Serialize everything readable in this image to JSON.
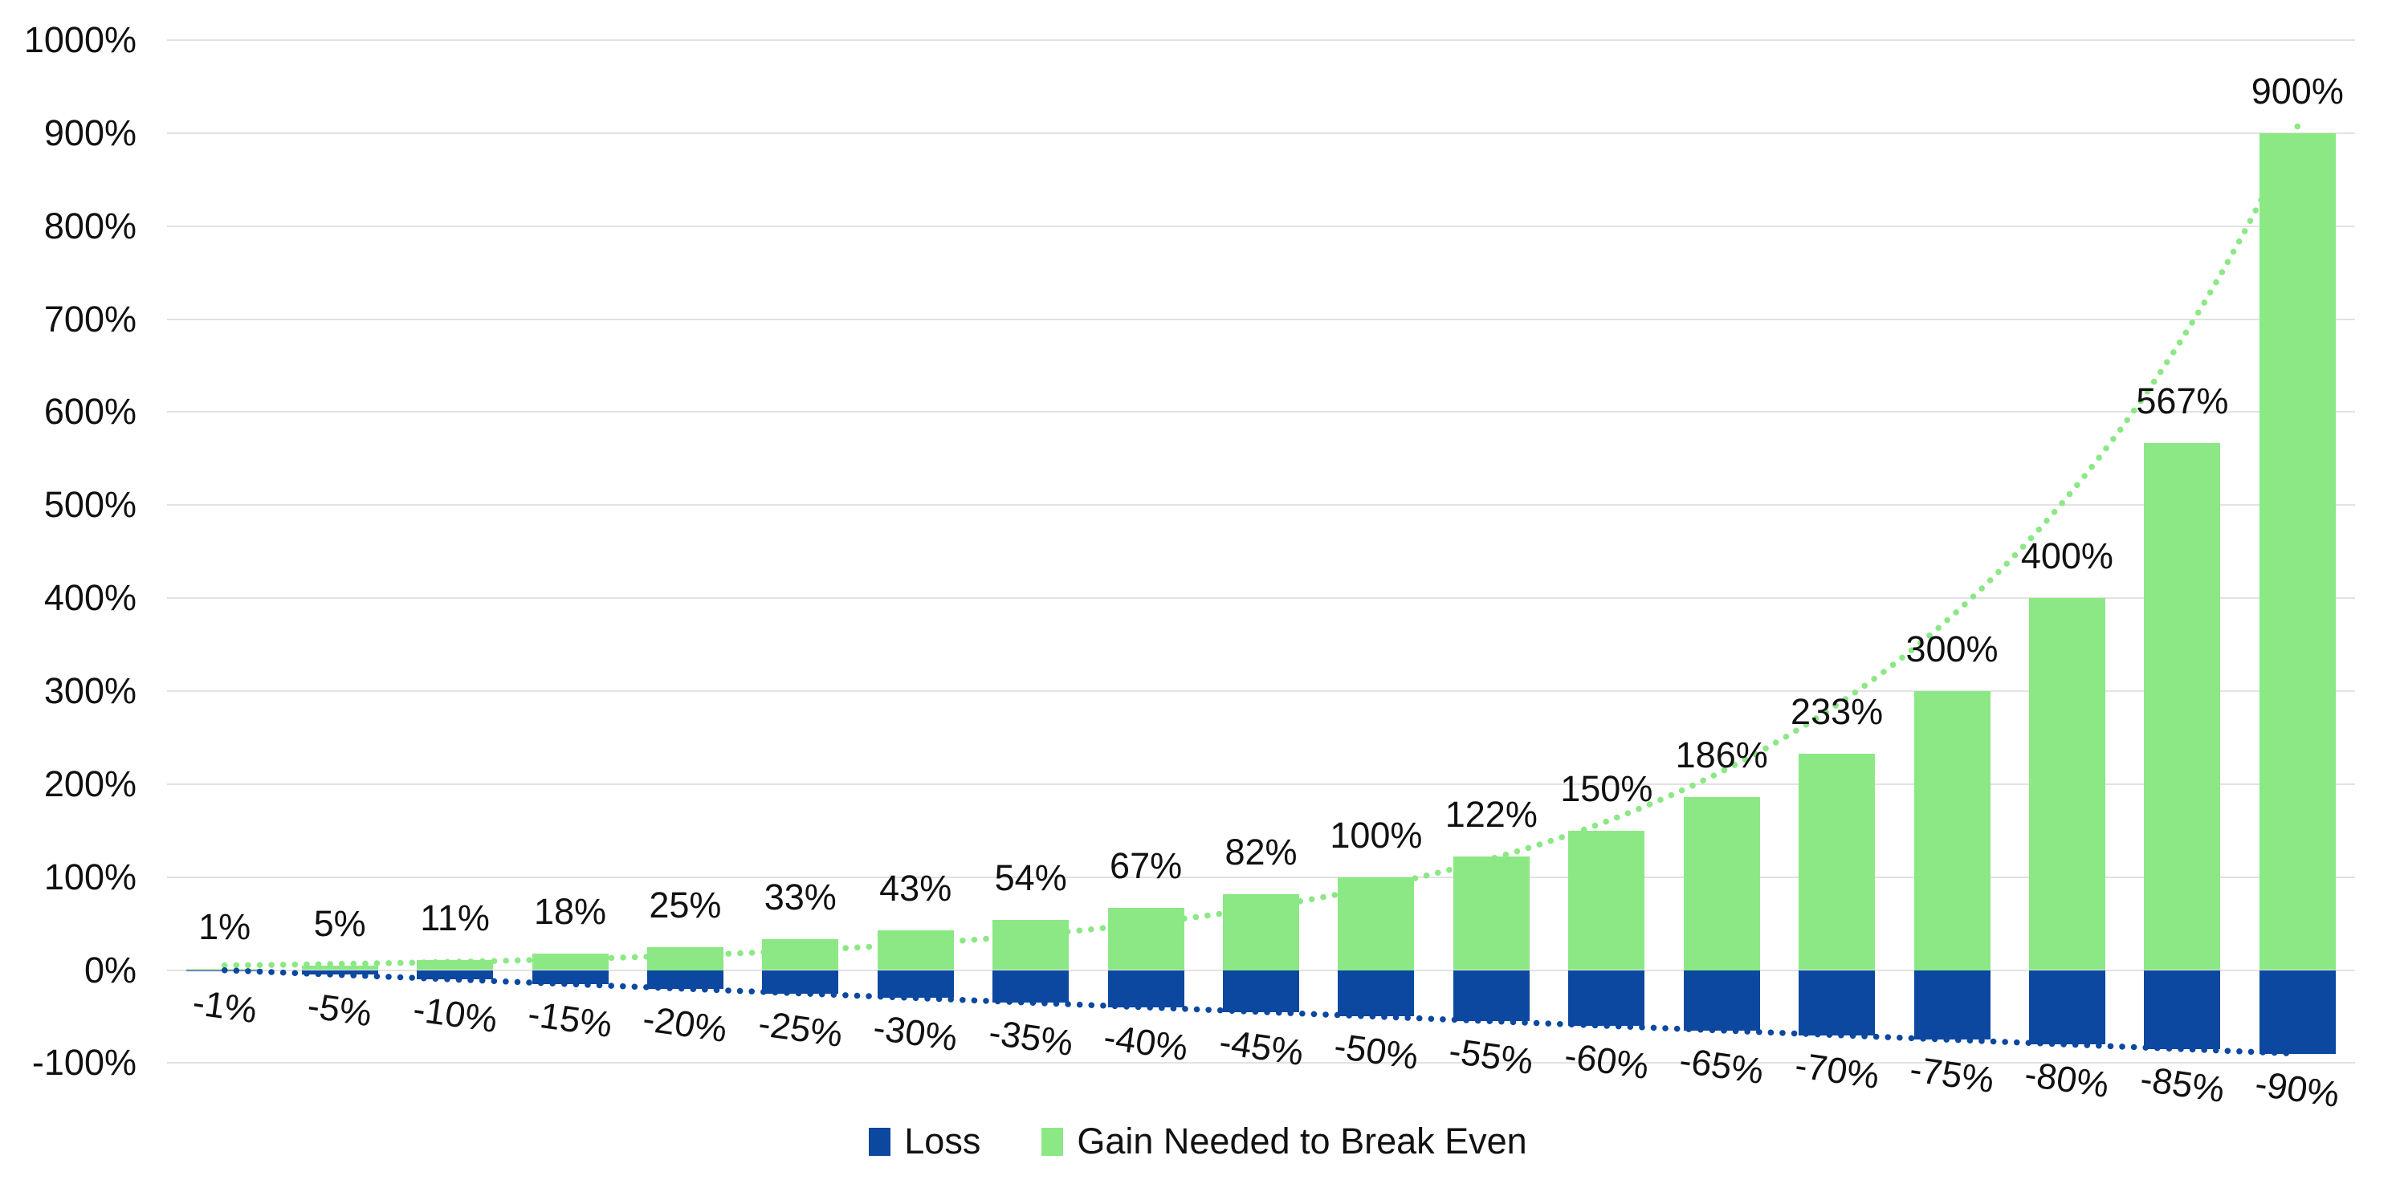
{
  "page": {
    "background": "#FFFFFF"
  },
  "legend": {
    "position": "bottom-center",
    "items": [
      {
        "label": "Loss",
        "color": "#0C47A0"
      },
      {
        "label": "Gain Needed to Break Even",
        "color": "#8CE885"
      }
    ]
  },
  "chart_data": {
    "type": "bar",
    "variant": "stacked-column-with-dotted-trendlines",
    "title": "",
    "xlabel": "",
    "ylabel": "",
    "categories": [
      "-1%",
      "-5%",
      "-10%",
      "-15%",
      "-20%",
      "-25%",
      "-30%",
      "-35%",
      "-40%",
      "-45%",
      "-50%",
      "-55%",
      "-60%",
      "-65%",
      "-70%",
      "-75%",
      "-80%",
      "-85%",
      "-90%"
    ],
    "series": [
      {
        "name": "Loss",
        "color": "#0C47A0",
        "values": [
          -1,
          -5,
          -10,
          -15,
          -20,
          -25,
          -30,
          -35,
          -40,
          -45,
          -50,
          -55,
          -60,
          -65,
          -70,
          -75,
          -80,
          -85,
          -90
        ],
        "trendline": {
          "type": "linear",
          "style": "dotted",
          "color": "#0C47A0"
        }
      },
      {
        "name": "Gain Needed to Break Even",
        "color": "#8CE885",
        "values": [
          1,
          5,
          11,
          18,
          25,
          33,
          43,
          54,
          67,
          82,
          100,
          122,
          150,
          186,
          233,
          300,
          400,
          567,
          900
        ],
        "data_labels": [
          "1%",
          "5%",
          "11%",
          "18%",
          "25%",
          "33%",
          "43%",
          "54%",
          "67%",
          "82%",
          "100%",
          "122%",
          "150%",
          "186%",
          "233%",
          "300%",
          "400%",
          "567%",
          "900%"
        ],
        "trendline": {
          "type": "exponential",
          "style": "dotted",
          "color": "#8CE885"
        }
      }
    ],
    "y_axis": {
      "min": -100,
      "max": 1000,
      "step": 100,
      "tick_labels": [
        "1000%",
        "900%",
        "800%",
        "700%",
        "600%",
        "500%",
        "400%",
        "300%",
        "200%",
        "100%",
        "0%",
        "-100%"
      ]
    },
    "x_axis": {
      "label_rotation_deg": 8,
      "labels_follow_bar_bottoms": true
    },
    "gridlines": {
      "direction": "horizontal",
      "color": "#E2E2E2"
    },
    "legend_position": "bottom",
    "text_color": "#111111"
  }
}
